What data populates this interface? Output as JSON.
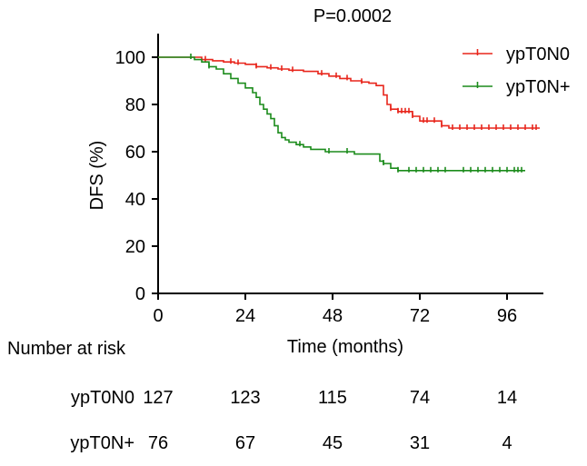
{
  "chart_data": {
    "type": "line",
    "title": "P=0.0002",
    "xlabel": "Time (months)",
    "ylabel": "DFS (%)",
    "xlim": [
      0,
      106
    ],
    "ylim": [
      0,
      110
    ],
    "xticks": [
      0,
      24,
      48,
      72,
      96
    ],
    "yticks": [
      0,
      20,
      40,
      60,
      80,
      100
    ],
    "grid": false,
    "legend_position": "top-right",
    "series": [
      {
        "name": "ypT0N0",
        "color": "#e8261c",
        "x": [
          0,
          9,
          12,
          15,
          18,
          21,
          24,
          27,
          30,
          33,
          36,
          40,
          44,
          47,
          50,
          53,
          56,
          58,
          60,
          61,
          62,
          63,
          64,
          66,
          70,
          72,
          75,
          78,
          80,
          84,
          88,
          92,
          96,
          100,
          105
        ],
        "y": [
          100,
          100,
          99,
          98.5,
          98,
          97.5,
          97,
          96,
          95.5,
          95,
          94.5,
          94,
          93,
          92,
          91,
          90,
          89.5,
          89,
          88,
          88,
          84,
          80,
          78,
          77,
          75,
          73,
          73,
          71,
          70,
          70,
          70,
          70,
          70,
          70,
          70
        ],
        "censor_x": [
          13,
          20,
          22,
          27,
          31,
          34,
          37,
          45,
          49,
          52,
          56,
          64,
          66,
          67,
          68,
          69,
          70,
          73,
          74,
          76,
          78,
          81,
          83,
          85,
          87,
          89,
          91,
          93,
          95,
          97,
          99,
          101,
          103,
          104
        ]
      },
      {
        "name": "ypT0N+",
        "color": "#1c8c1c",
        "x": [
          0,
          8,
          10,
          12,
          14,
          16,
          18,
          20,
          22,
          24,
          26,
          27,
          28,
          29,
          30,
          31,
          32,
          33,
          34,
          35,
          36,
          38,
          40,
          42,
          44,
          46,
          50,
          54,
          58,
          59,
          60,
          61,
          62,
          64,
          66,
          68,
          72,
          76,
          80,
          84,
          88,
          92,
          96,
          101
        ],
        "y": [
          100,
          100,
          99,
          98,
          96,
          95,
          93,
          91,
          89,
          87,
          85,
          83,
          80,
          78,
          76,
          74,
          71,
          68,
          66,
          65,
          64,
          63,
          62,
          61,
          61,
          60,
          60,
          59,
          59,
          59,
          59,
          56,
          55,
          53,
          52,
          52,
          52,
          52,
          52,
          52,
          52,
          52,
          52,
          52
        ],
        "censor_x": [
          9,
          14,
          39,
          47,
          52,
          62,
          66,
          69,
          71,
          73,
          75,
          77,
          79,
          84,
          86,
          88,
          90,
          92,
          94,
          96,
          98,
          99,
          100
        ]
      }
    ],
    "risk_table": {
      "title": "Number at risk",
      "timepoints": [
        0,
        24,
        48,
        72,
        96
      ],
      "rows": [
        {
          "label": "ypT0N0",
          "values": [
            "127",
            "123",
            "115",
            "74",
            "14"
          ]
        },
        {
          "label": "ypT0N+",
          "values": [
            "76",
            "67",
            "45",
            "31",
            "4"
          ]
        }
      ]
    }
  }
}
